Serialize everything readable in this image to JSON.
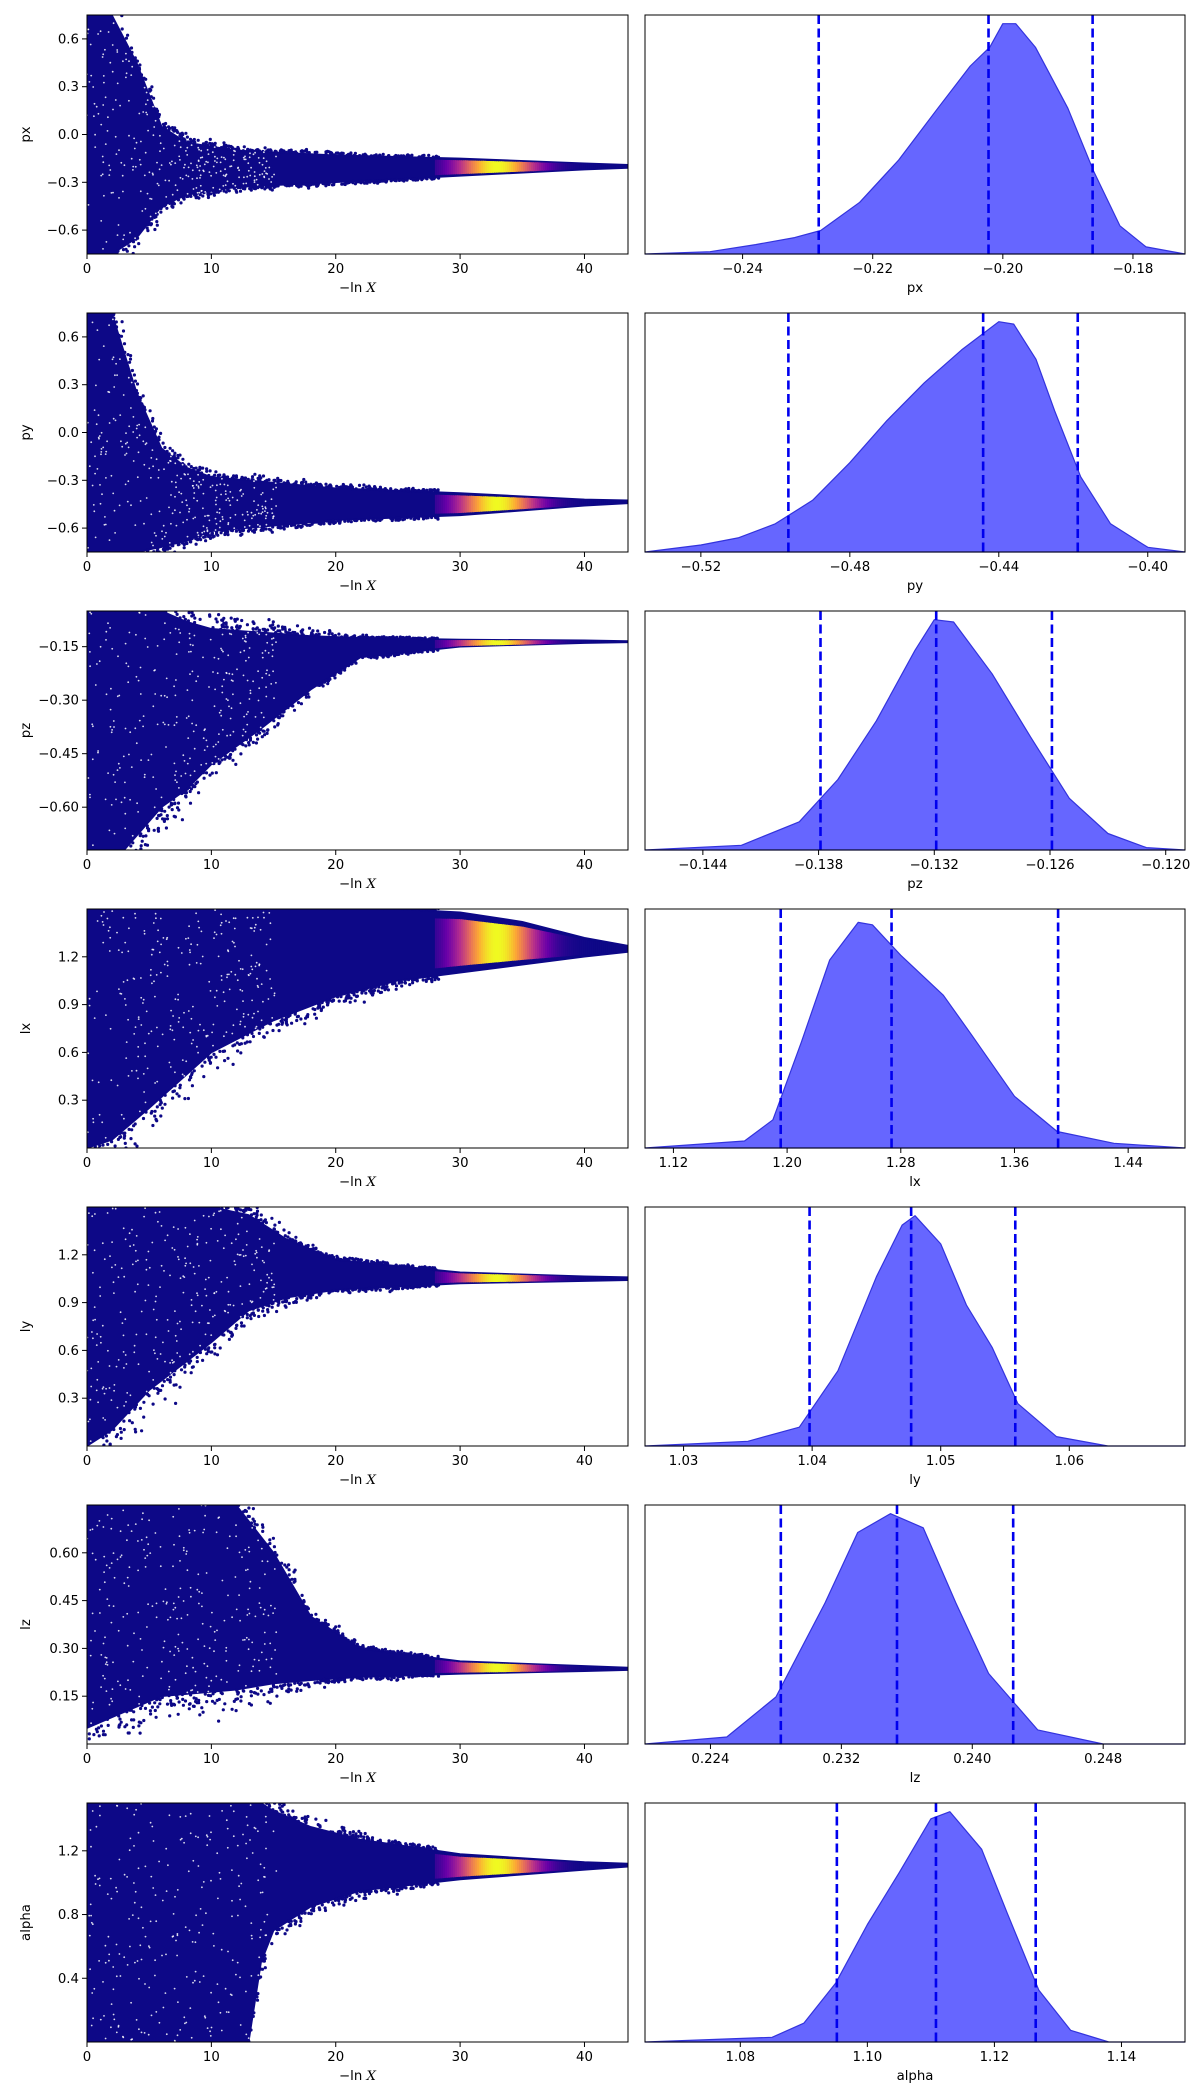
{
  "colors": {
    "trace_base": "#0d0887",
    "colormap": [
      "#0d0887",
      "#6a00a8",
      "#b12a90",
      "#e16462",
      "#fca636",
      "#f0f921"
    ],
    "kde_fill": "#6666ff",
    "kde_edge": "#3333dd",
    "quantile_line": "#0000ee"
  },
  "xlabel_trace": "−ln X",
  "chart_data": [
    {
      "type": "scatter",
      "param": "px",
      "trace": {
        "xlabel": "−ln X",
        "ylabel": "px",
        "xlim": [
          0,
          43.5
        ],
        "ylim": [
          -0.75,
          0.75
        ],
        "xticks": [
          0,
          10,
          20,
          30,
          40
        ],
        "yticks": [
          -0.6,
          -0.3,
          0.0,
          0.3,
          0.6
        ],
        "yticklabels": [
          "−0.6",
          "−0.3",
          "0.0",
          "0.3",
          "0.6"
        ],
        "envelope": [
          [
            0,
            -0.75,
            0.75
          ],
          [
            2,
            -0.75,
            0.75
          ],
          [
            4,
            -0.65,
            0.45
          ],
          [
            6,
            -0.45,
            0.05
          ],
          [
            8,
            -0.38,
            -0.05
          ],
          [
            12,
            -0.33,
            -0.1
          ],
          [
            20,
            -0.3,
            -0.13
          ],
          [
            30,
            -0.26,
            -0.15
          ],
          [
            40,
            -0.22,
            -0.18
          ],
          [
            43.5,
            -0.21,
            -0.19
          ]
        ],
        "peak_x": 33
      },
      "kde": {
        "xlabel": "px",
        "xlim": [
          -0.255,
          -0.172
        ],
        "xticks": [
          -0.24,
          -0.22,
          -0.2,
          -0.18
        ],
        "xticklabels": [
          "−0.24",
          "−0.22",
          "−0.20",
          "−0.18"
        ],
        "density": [
          [
            -0.255,
            0.0
          ],
          [
            -0.245,
            0.01
          ],
          [
            -0.238,
            0.04
          ],
          [
            -0.232,
            0.07
          ],
          [
            -0.228,
            0.1
          ],
          [
            -0.222,
            0.22
          ],
          [
            -0.216,
            0.4
          ],
          [
            -0.21,
            0.62
          ],
          [
            -0.205,
            0.8
          ],
          [
            -0.202,
            0.88
          ],
          [
            -0.2,
            0.98
          ],
          [
            -0.198,
            0.98
          ],
          [
            -0.195,
            0.88
          ],
          [
            -0.19,
            0.62
          ],
          [
            -0.186,
            0.35
          ],
          [
            -0.182,
            0.12
          ],
          [
            -0.178,
            0.03
          ],
          [
            -0.172,
            0.0
          ]
        ],
        "quantiles": [
          -0.2283,
          -0.2022,
          -0.1862
        ]
      }
    },
    {
      "type": "scatter",
      "param": "py",
      "trace": {
        "xlabel": "−ln X",
        "ylabel": "py",
        "xlim": [
          0,
          43.5
        ],
        "ylim": [
          -0.75,
          0.75
        ],
        "xticks": [
          0,
          10,
          20,
          30,
          40
        ],
        "yticks": [
          -0.6,
          -0.3,
          0.0,
          0.3,
          0.6
        ],
        "yticklabels": [
          "−0.6",
          "−0.3",
          "0.0",
          "0.3",
          "0.6"
        ],
        "envelope": [
          [
            0,
            -0.75,
            0.75
          ],
          [
            2,
            -0.75,
            0.75
          ],
          [
            4,
            -0.75,
            0.25
          ],
          [
            6,
            -0.72,
            -0.1
          ],
          [
            8,
            -0.68,
            -0.22
          ],
          [
            10,
            -0.62,
            -0.28
          ],
          [
            20,
            -0.55,
            -0.35
          ],
          [
            30,
            -0.52,
            -0.38
          ],
          [
            40,
            -0.46,
            -0.42
          ],
          [
            43.5,
            -0.445,
            -0.425
          ]
        ],
        "peak_x": 33
      },
      "kde": {
        "xlabel": "py",
        "xlim": [
          -0.535,
          -0.39
        ],
        "xticks": [
          -0.52,
          -0.48,
          -0.44,
          -0.4
        ],
        "xticklabels": [
          "−0.52",
          "−0.48",
          "−0.44",
          "−0.40"
        ],
        "density": [
          [
            -0.535,
            0.0
          ],
          [
            -0.52,
            0.03
          ],
          [
            -0.51,
            0.06
          ],
          [
            -0.5,
            0.12
          ],
          [
            -0.49,
            0.22
          ],
          [
            -0.48,
            0.38
          ],
          [
            -0.47,
            0.56
          ],
          [
            -0.46,
            0.72
          ],
          [
            -0.45,
            0.86
          ],
          [
            -0.44,
            0.98
          ],
          [
            -0.436,
            0.97
          ],
          [
            -0.43,
            0.82
          ],
          [
            -0.425,
            0.6
          ],
          [
            -0.418,
            0.32
          ],
          [
            -0.41,
            0.12
          ],
          [
            -0.4,
            0.02
          ],
          [
            -0.39,
            0.0
          ]
        ],
        "quantiles": [
          -0.4965,
          -0.4442,
          -0.4188
        ]
      }
    },
    {
      "type": "scatter",
      "param": "pz",
      "trace": {
        "xlabel": "−ln X",
        "ylabel": "pz",
        "xlim": [
          0,
          43.5
        ],
        "ylim": [
          -0.72,
          -0.05
        ],
        "xticks": [
          0,
          10,
          20,
          30,
          40
        ],
        "yticks": [
          -0.6,
          -0.45,
          -0.3,
          -0.15
        ],
        "yticklabels": [
          "−0.60",
          "−0.45",
          "−0.30",
          "−0.15"
        ],
        "envelope": [
          [
            0,
            -0.72,
            -0.05
          ],
          [
            3,
            -0.72,
            -0.05
          ],
          [
            6,
            -0.6,
            -0.05
          ],
          [
            8,
            -0.55,
            -0.08
          ],
          [
            10,
            -0.48,
            -0.1
          ],
          [
            14,
            -0.38,
            -0.11
          ],
          [
            18,
            -0.27,
            -0.12
          ],
          [
            22,
            -0.18,
            -0.125
          ],
          [
            30,
            -0.15,
            -0.13
          ],
          [
            40,
            -0.14,
            -0.132
          ],
          [
            43.5,
            -0.138,
            -0.134
          ]
        ],
        "peak_x": 33
      },
      "kde": {
        "xlabel": "pz",
        "xlim": [
          -0.147,
          -0.119
        ],
        "xticks": [
          -0.144,
          -0.138,
          -0.132,
          -0.126,
          -0.12
        ],
        "xticklabels": [
          "−0.144",
          "−0.138",
          "−0.132",
          "−0.126",
          "−0.120"
        ],
        "density": [
          [
            -0.147,
            0.0
          ],
          [
            -0.142,
            0.02
          ],
          [
            -0.139,
            0.12
          ],
          [
            -0.137,
            0.3
          ],
          [
            -0.135,
            0.55
          ],
          [
            -0.133,
            0.85
          ],
          [
            -0.132,
            0.98
          ],
          [
            -0.131,
            0.97
          ],
          [
            -0.129,
            0.75
          ],
          [
            -0.127,
            0.48
          ],
          [
            -0.125,
            0.22
          ],
          [
            -0.123,
            0.07
          ],
          [
            -0.121,
            0.01
          ],
          [
            -0.119,
            0.0
          ]
        ],
        "quantiles": [
          -0.1379,
          -0.1319,
          -0.1259
        ]
      }
    },
    {
      "type": "scatter",
      "param": "lx",
      "trace": {
        "xlabel": "−ln X",
        "ylabel": "lx",
        "xlim": [
          0,
          43.5
        ],
        "ylim": [
          0.0,
          1.5
        ],
        "xticks": [
          0,
          10,
          20,
          30,
          40
        ],
        "yticks": [
          0.3,
          0.6,
          0.9,
          1.2
        ],
        "yticklabels": [
          "0.3",
          "0.6",
          "0.9",
          "1.2"
        ],
        "envelope": [
          [
            0,
            0.0,
            1.5
          ],
          [
            2,
            0.05,
            1.5
          ],
          [
            5,
            0.25,
            1.5
          ],
          [
            10,
            0.6,
            1.5
          ],
          [
            15,
            0.8,
            1.5
          ],
          [
            20,
            0.95,
            1.5
          ],
          [
            25,
            1.05,
            1.5
          ],
          [
            30,
            1.1,
            1.48
          ],
          [
            35,
            1.15,
            1.42
          ],
          [
            40,
            1.2,
            1.32
          ],
          [
            43.5,
            1.23,
            1.27
          ]
        ],
        "peak_x": 33
      },
      "kde": {
        "xlabel": "lx",
        "xlim": [
          1.1,
          1.48
        ],
        "xticks": [
          1.12,
          1.2,
          1.28,
          1.36,
          1.44
        ],
        "xticklabels": [
          "1.12",
          "1.20",
          "1.28",
          "1.36",
          "1.44"
        ],
        "density": [
          [
            1.1,
            0.0
          ],
          [
            1.17,
            0.03
          ],
          [
            1.19,
            0.12
          ],
          [
            1.21,
            0.45
          ],
          [
            1.23,
            0.8
          ],
          [
            1.25,
            0.96
          ],
          [
            1.26,
            0.95
          ],
          [
            1.28,
            0.82
          ],
          [
            1.31,
            0.65
          ],
          [
            1.33,
            0.48
          ],
          [
            1.36,
            0.22
          ],
          [
            1.39,
            0.07
          ],
          [
            1.43,
            0.02
          ],
          [
            1.48,
            0.0
          ]
        ],
        "quantiles": [
          1.1955,
          1.2735,
          1.3907
        ]
      }
    },
    {
      "type": "scatter",
      "param": "ly",
      "trace": {
        "xlabel": "−ln X",
        "ylabel": "ly",
        "xlim": [
          0,
          43.5
        ],
        "ylim": [
          0.0,
          1.5
        ],
        "xticks": [
          0,
          10,
          20,
          30,
          40
        ],
        "yticks": [
          0.3,
          0.6,
          0.9,
          1.2
        ],
        "yticklabels": [
          "0.3",
          "0.6",
          "0.9",
          "1.2"
        ],
        "envelope": [
          [
            0,
            0.0,
            1.5
          ],
          [
            2,
            0.1,
            1.5
          ],
          [
            5,
            0.35,
            1.5
          ],
          [
            10,
            0.65,
            1.5
          ],
          [
            13,
            0.85,
            1.45
          ],
          [
            16,
            0.93,
            1.3
          ],
          [
            20,
            0.98,
            1.17
          ],
          [
            30,
            1.02,
            1.09
          ],
          [
            40,
            1.035,
            1.065
          ],
          [
            43.5,
            1.04,
            1.06
          ]
        ],
        "peak_x": 33
      },
      "kde": {
        "xlabel": "ly",
        "xlim": [
          1.027,
          1.069
        ],
        "xticks": [
          1.03,
          1.04,
          1.05,
          1.06
        ],
        "xticklabels": [
          "1.03",
          "1.04",
          "1.05",
          "1.06"
        ],
        "density": [
          [
            1.027,
            0.0
          ],
          [
            1.035,
            0.02
          ],
          [
            1.039,
            0.08
          ],
          [
            1.042,
            0.32
          ],
          [
            1.045,
            0.72
          ],
          [
            1.047,
            0.94
          ],
          [
            1.048,
            0.98
          ],
          [
            1.05,
            0.86
          ],
          [
            1.052,
            0.6
          ],
          [
            1.054,
            0.42
          ],
          [
            1.056,
            0.18
          ],
          [
            1.059,
            0.04
          ],
          [
            1.063,
            0.0
          ],
          [
            1.069,
            0.0
          ]
        ],
        "quantiles": [
          1.0398,
          1.0477,
          1.0558
        ]
      }
    },
    {
      "type": "scatter",
      "param": "lz",
      "trace": {
        "xlabel": "−ln X",
        "ylabel": "lz",
        "xlim": [
          0,
          43.5
        ],
        "ylim": [
          0.0,
          0.75
        ],
        "xticks": [
          0,
          10,
          20,
          30,
          40
        ],
        "yticks": [
          0.15,
          0.3,
          0.45,
          0.6
        ],
        "yticklabels": [
          "0.15",
          "0.30",
          "0.45",
          "0.60"
        ],
        "envelope": [
          [
            0,
            0.05,
            0.75
          ],
          [
            3,
            0.1,
            0.75
          ],
          [
            6,
            0.15,
            0.75
          ],
          [
            12,
            0.17,
            0.75
          ],
          [
            15,
            0.19,
            0.6
          ],
          [
            18,
            0.2,
            0.4
          ],
          [
            22,
            0.21,
            0.3
          ],
          [
            30,
            0.22,
            0.26
          ],
          [
            40,
            0.228,
            0.245
          ],
          [
            43.5,
            0.232,
            0.24
          ]
        ],
        "peak_x": 33
      },
      "kde": {
        "xlabel": "lz",
        "xlim": [
          0.22,
          0.253
        ],
        "xticks": [
          0.224,
          0.232,
          0.24,
          0.248
        ],
        "xticklabels": [
          "0.224",
          "0.232",
          "0.240",
          "0.248"
        ],
        "density": [
          [
            0.22,
            0.0
          ],
          [
            0.225,
            0.03
          ],
          [
            0.228,
            0.2
          ],
          [
            0.231,
            0.6
          ],
          [
            0.233,
            0.9
          ],
          [
            0.235,
            0.98
          ],
          [
            0.237,
            0.92
          ],
          [
            0.239,
            0.6
          ],
          [
            0.241,
            0.3
          ],
          [
            0.244,
            0.06
          ],
          [
            0.248,
            0.0
          ],
          [
            0.253,
            0.0
          ]
        ],
        "quantiles": [
          0.2283,
          0.2354,
          0.2425
        ]
      }
    },
    {
      "type": "scatter",
      "param": "alpha",
      "trace": {
        "xlabel": "−ln X",
        "ylabel": "alpha",
        "xlim": [
          0,
          43.5
        ],
        "ylim": [
          0.0,
          1.5
        ],
        "xticks": [
          0,
          10,
          20,
          30,
          40
        ],
        "yticks": [
          0.4,
          0.8,
          1.2
        ],
        "yticklabels": [
          "0.4",
          "0.8",
          "1.2"
        ],
        "envelope": [
          [
            0,
            0.0,
            1.5
          ],
          [
            13,
            0.0,
            1.5
          ],
          [
            14,
            0.5,
            1.5
          ],
          [
            15,
            0.7,
            1.45
          ],
          [
            18,
            0.85,
            1.35
          ],
          [
            22,
            0.95,
            1.27
          ],
          [
            30,
            1.02,
            1.18
          ],
          [
            40,
            1.08,
            1.13
          ],
          [
            43.5,
            1.1,
            1.12
          ]
        ],
        "peak_x": 33
      },
      "kde": {
        "xlabel": "alpha",
        "xlim": [
          1.065,
          1.15
        ],
        "xticks": [
          1.08,
          1.1,
          1.12,
          1.14
        ],
        "xticklabels": [
          "1.08",
          "1.10",
          "1.12",
          "1.14"
        ],
        "density": [
          [
            1.065,
            0.0
          ],
          [
            1.085,
            0.02
          ],
          [
            1.09,
            0.08
          ],
          [
            1.095,
            0.25
          ],
          [
            1.1,
            0.5
          ],
          [
            1.105,
            0.72
          ],
          [
            1.11,
            0.95
          ],
          [
            1.113,
            0.98
          ],
          [
            1.118,
            0.82
          ],
          [
            1.122,
            0.55
          ],
          [
            1.127,
            0.22
          ],
          [
            1.132,
            0.05
          ],
          [
            1.138,
            0.0
          ],
          [
            1.15,
            0.0
          ]
        ],
        "quantiles": [
          1.0952,
          1.1108,
          1.1265
        ]
      }
    }
  ]
}
